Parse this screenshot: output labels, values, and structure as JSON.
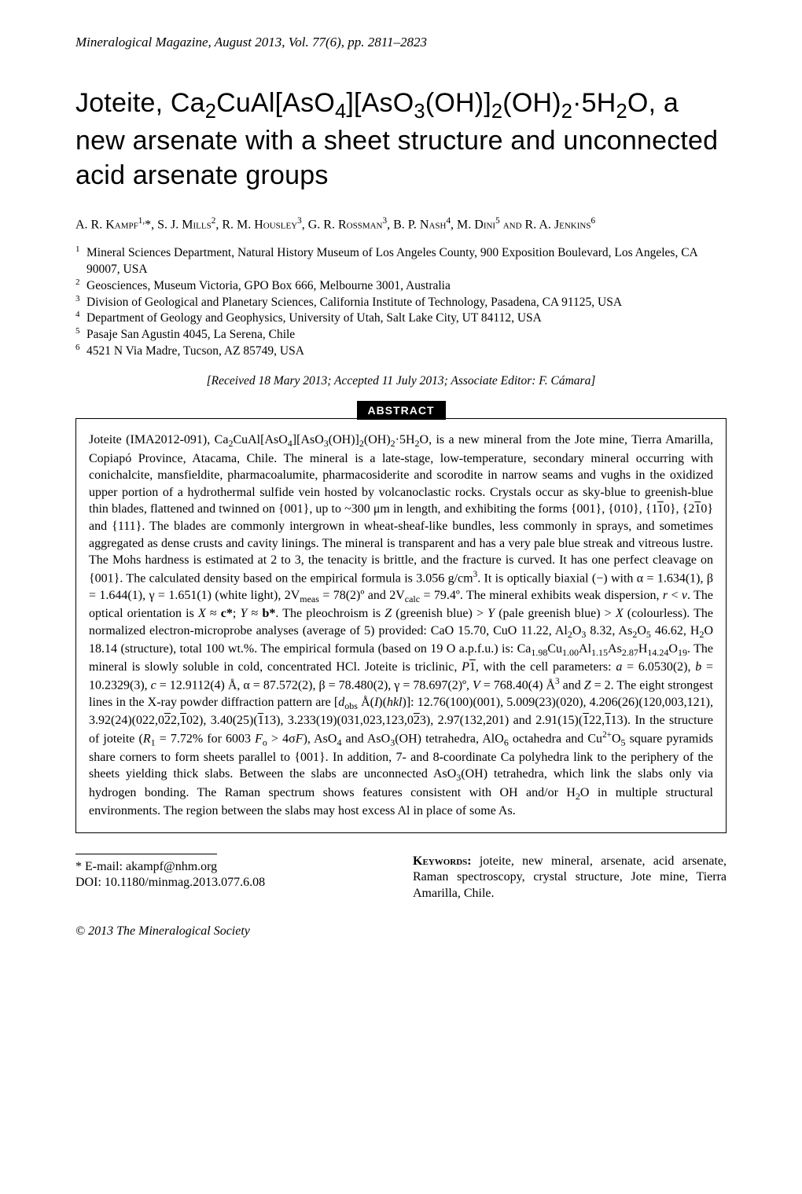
{
  "running_header": "Mineralogical Magazine, August 2013, Vol. 77(6), pp. 2811–2823",
  "title_html": "Joteite, Ca<sub>2</sub>CuAl[AsO<sub>4</sub>][AsO<sub>3</sub>(OH)]<sub>2</sub>(OH)<sub>2</sub>·5H<sub>2</sub>O, a new arsenate with a sheet structure and unconnected acid arsenate groups",
  "authors_html": "A. R. Kampf<sup>1,</sup>*, S. J. Mills<sup>2</sup>, R. M. Housley<sup>3</sup>, G. R. Rossman<sup>3</sup>, B. P. Nash<sup>4</sup>, M. Dini<sup>5</sup> and R. A. Jenkins<sup>6</sup>",
  "affiliations": [
    {
      "n": "1",
      "t": "Mineral Sciences Department, Natural History Museum of Los Angeles County, 900 Exposition Boulevard, Los Angeles, CA 90007, USA"
    },
    {
      "n": "2",
      "t": "Geosciences, Museum Victoria, GPO Box 666, Melbourne 3001, Australia"
    },
    {
      "n": "3",
      "t": "Division of Geological and Planetary Sciences, California Institute of Technology, Pasadena, CA 91125, USA"
    },
    {
      "n": "4",
      "t": "Department of Geology and Geophysics, University of Utah, Salt Lake City, UT 84112, USA"
    },
    {
      "n": "5",
      "t": "Pasaje San Agustin 4045, La Serena, Chile"
    },
    {
      "n": "6",
      "t": "4521 N Via Madre, Tucson, AZ 85749, USA"
    }
  ],
  "received": "[Received 18 Mary 2013; Accepted 11 July 2013; Associate Editor: F. Cámara]",
  "abstract_label": "ABSTRACT",
  "abstract_html": "Joteite (IMA2012-091), Ca<sub>2</sub>CuAl[AsO<sub>4</sub>][AsO<sub>3</sub>(OH)]<sub>2</sub>(OH)<sub>2</sub>·5H<sub>2</sub>O, is a new mineral from the Jote mine, Tierra Amarilla, Copiapó Province, Atacama, Chile. The mineral is a late-stage, low-temperature, secondary mineral occurring with conichalcite, mansfieldite, pharmacoalumite, pharmacosiderite and scorodite in narrow seams and vughs in the oxidized upper portion of a hydrothermal sulfide vein hosted by volcanoclastic rocks. Crystals occur as sky-blue to greenish-blue thin blades, flattened and twinned on {001}, up to ~300 μm in length, and exhibiting the forms {001}, {010}, {1<span class=\"ovl\">1</span>0}, {2<span class=\"ovl\">1</span>0} and {111}. The blades are commonly intergrown in wheat-sheaf-like bundles, less commonly in sprays, and sometimes aggregated as dense crusts and cavity linings. The mineral is transparent and has a very pale blue streak and vitreous lustre. The Mohs hardness is estimated at 2 to 3, the tenacity is brittle, and the fracture is curved. It has one perfect cleavage on {001}. The calculated density based on the empirical formula is 3.056 g/cm<sup>3</sup>. It is optically biaxial (−) with α = 1.634(1), β = 1.644(1), γ = 1.651(1) (white light), 2V<sub>meas</sub> = 78(2)º and 2V<sub>calc</sub> = 79.4º. The mineral exhibits weak dispersion, <i>r</i> &lt; <i>v</i>. The optical orientation is <i>X</i> ≈ <b>c*</b>; <i>Y</i> ≈ <b>b*</b>. The pleochroism is <i>Z</i> (greenish blue) &gt; <i>Y</i> (pale greenish blue) &gt; <i>X</i> (colourless). The normalized electron-microprobe analyses (average of 5) provided: CaO 15.70, CuO 11.22, Al<sub>2</sub>O<sub>3</sub> 8.32, As<sub>2</sub>O<sub>5</sub> 46.62, H<sub>2</sub>O 18.14 (structure), total 100 wt.%. The empirical formula (based on 19 O a.p.f.u.) is: Ca<sub>1.98</sub>Cu<sub>1.00</sub>Al<sub>1.15</sub>As<sub>2.87</sub>H<sub>14.24</sub>O<sub>19</sub>. The mineral is slowly soluble in cold, concentrated HCl. Joteite is triclinic, <i>P</i><span class=\"ovl\">1</span>, with the cell parameters: <i>a</i> = 6.0530(2), <i>b</i> = 10.2329(3), <i>c</i> = 12.9112(4) Å, α = 87.572(2), β = 78.480(2), γ = 78.697(2)º, <i>V</i> = 768.40(4) Å<sup>3</sup> and <i>Z</i> = 2. The eight strongest lines in the X-ray powder diffraction pattern are [<i>d</i><sub>obs</sub> Å(<i>I</i>)(<i>hkl</i>)]: 12.76(100)(001), 5.009(23)(020), 4.206(26)(120,003,121), 3.92(24)(022,0<span class=\"ovl\">2</span>2,<span class=\"ovl\">1</span>02), 3.40(25)(<span class=\"ovl\">1</span>13), 3.233(19)(031,023,123,0<span class=\"ovl\">2</span>3), 2.97(132,201) and 2.91(15)(<span class=\"ovl\">1</span>22,<span class=\"ovl\">1</span>13). In the structure of joteite (<i>R</i><sub>1</sub> = 7.72% for 6003 <i>F</i><sub>o</sub> &gt; 4σ<i>F</i>), AsO<sub>4</sub> and AsO<sub>3</sub>(OH) tetrahedra, AlO<sub>6</sub> octahedra and Cu<sup>2+</sup>O<sub>5</sub> square pyramids share corners to form sheets parallel to {001}. In addition, 7- and 8-coordinate Ca polyhedra link to the periphery of the sheets yielding thick slabs. Between the slabs are unconnected AsO<sub>3</sub>(OH) tetrahedra, which link the slabs only via hydrogen bonding. The Raman spectrum shows features consistent with OH and/or H<sub>2</sub>O in multiple structural environments. The region between the slabs may host excess Al in place of some As.",
  "footer_left": {
    "email_line": "* E-mail: akampf@nhm.org",
    "doi_line": "DOI: 10.1180/minmag.2013.077.6.08"
  },
  "keywords_label": "Keywords:",
  "keywords_text": " joteite, new mineral, arsenate, acid arsenate, Raman spectroscopy, crystal structure, Jote mine, Tierra Amarilla, Chile.",
  "copyright_html": "© <i>2013 The Mineralogical Society</i>"
}
